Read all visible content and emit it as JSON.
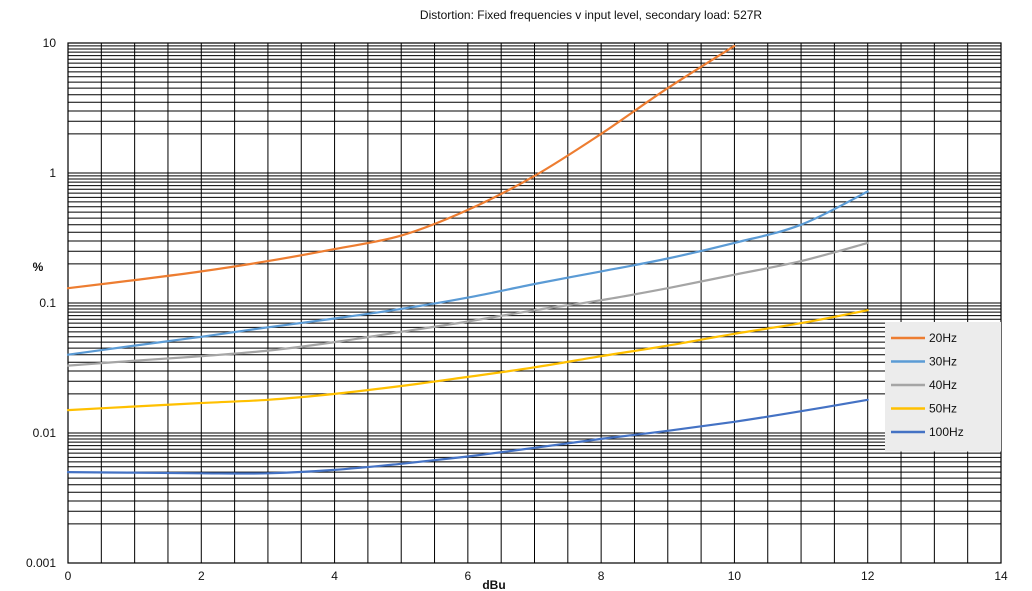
{
  "chart_data": {
    "type": "line",
    "title": "Distortion: Fixed frequencies v input level, secondary load: 527R",
    "xlabel": "dBu",
    "ylabel": "%",
    "xlim": [
      0,
      14
    ],
    "ylim": [
      0.001,
      10
    ],
    "y_scale": "log",
    "grid": true,
    "legend_position": "right",
    "x_ticks": [
      "0",
      "2",
      "4",
      "6",
      "8",
      "10",
      "12",
      "14"
    ],
    "y_ticks": [
      "0.001",
      "0.01",
      "0.1",
      "1",
      "10"
    ],
    "series": [
      {
        "name": "20Hz",
        "color": "#ed7d31",
        "x": [
          0,
          1,
          2,
          3,
          4,
          5,
          6,
          7,
          8,
          9,
          10
        ],
        "y": [
          0.13,
          0.15,
          0.175,
          0.21,
          0.26,
          0.33,
          0.52,
          0.95,
          2.0,
          4.5,
          9.5
        ]
      },
      {
        "name": "30Hz",
        "color": "#5b9bd5",
        "x": [
          0,
          1,
          2,
          3,
          4,
          5,
          6,
          7,
          8,
          9,
          10,
          11,
          12
        ],
        "y": [
          0.04,
          0.047,
          0.055,
          0.065,
          0.076,
          0.09,
          0.11,
          0.14,
          0.175,
          0.22,
          0.29,
          0.4,
          0.72
        ]
      },
      {
        "name": "40Hz",
        "color": "#a5a5a5",
        "x": [
          0,
          1,
          2,
          3,
          4,
          5,
          6,
          7,
          8,
          9,
          10,
          11,
          12
        ],
        "y": [
          0.033,
          0.036,
          0.039,
          0.043,
          0.05,
          0.06,
          0.072,
          0.088,
          0.105,
          0.13,
          0.165,
          0.21,
          0.29
        ]
      },
      {
        "name": "50Hz",
        "color": "#ffc000",
        "x": [
          0,
          1,
          2,
          3,
          4,
          5,
          6,
          7,
          8,
          9,
          10,
          11,
          12
        ],
        "y": [
          0.015,
          0.016,
          0.017,
          0.018,
          0.02,
          0.023,
          0.027,
          0.032,
          0.039,
          0.047,
          0.058,
          0.07,
          0.088
        ]
      },
      {
        "name": "100Hz",
        "color": "#4472c4",
        "x": [
          0,
          1,
          2,
          3,
          4,
          5,
          6,
          7,
          8,
          9,
          10,
          11,
          12
        ],
        "y": [
          0.005,
          0.00495,
          0.0049,
          0.0049,
          0.0052,
          0.0058,
          0.0066,
          0.0077,
          0.009,
          0.0104,
          0.0122,
          0.0147,
          0.018
        ]
      }
    ]
  }
}
